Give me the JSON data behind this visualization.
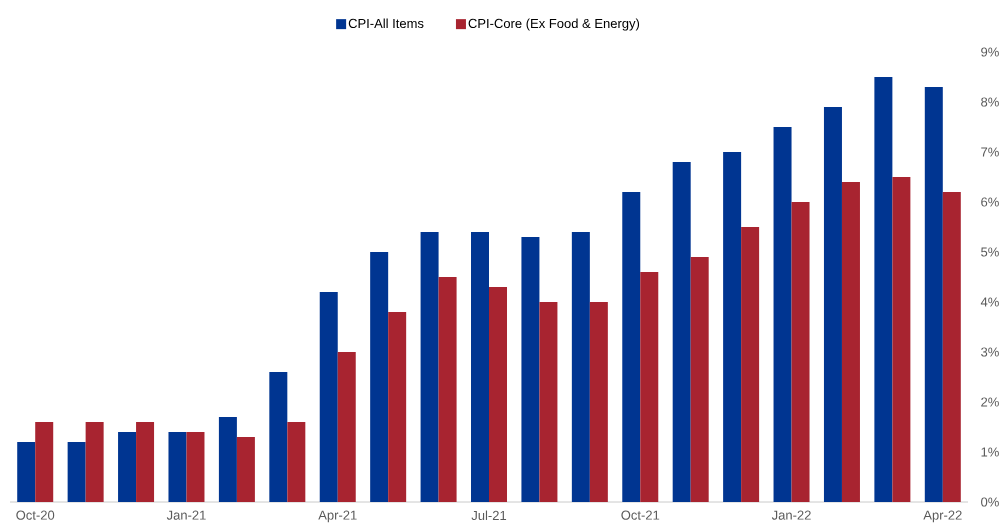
{
  "chart_data": {
    "type": "bar",
    "categories": [
      "Oct-20",
      null,
      null,
      "Jan-21",
      null,
      null,
      "Apr-21",
      null,
      null,
      "Jul-21",
      null,
      null,
      "Oct-21",
      null,
      null,
      "Jan-22",
      null,
      null,
      "Apr-22"
    ],
    "series": [
      {
        "name": "CPI-All Items",
        "color": "#003591",
        "values": [
          1.2,
          1.2,
          1.4,
          1.4,
          1.7,
          2.6,
          4.2,
          5.0,
          5.4,
          5.4,
          5.3,
          5.4,
          6.2,
          6.8,
          7.0,
          7.5,
          7.9,
          8.5,
          8.3
        ]
      },
      {
        "name": "CPI-Core (Ex Food & Energy)",
        "color": "#a82430",
        "values": [
          1.6,
          1.6,
          1.6,
          1.4,
          1.3,
          1.6,
          3.0,
          3.8,
          4.5,
          4.3,
          4.0,
          4.0,
          4.6,
          4.9,
          5.5,
          6.0,
          6.4,
          6.5,
          6.2
        ]
      }
    ],
    "ylim": [
      0,
      9
    ],
    "yticks": [
      {
        "value": 0,
        "label": "0%"
      },
      {
        "value": 1,
        "label": "1%"
      },
      {
        "value": 2,
        "label": "2%"
      },
      {
        "value": 3,
        "label": "3%"
      },
      {
        "value": 4,
        "label": "4%"
      },
      {
        "value": 5,
        "label": "5%"
      },
      {
        "value": 6,
        "label": "6%"
      },
      {
        "value": 7,
        "label": "7%"
      },
      {
        "value": 8,
        "label": "8%"
      },
      {
        "value": 9,
        "label": "9%"
      }
    ],
    "legend": "top"
  }
}
